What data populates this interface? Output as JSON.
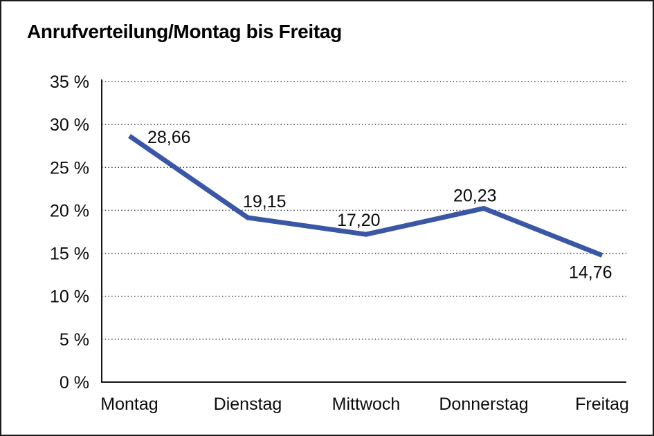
{
  "page": {
    "title": "Anrufverteilung/Montag bis Freitag"
  },
  "chart_data": {
    "type": "line",
    "title": "Anrufverteilung/Montag bis Freitag",
    "categories": [
      "Montag",
      "Dienstag",
      "Mittwoch",
      "Donnerstag",
      "Freitag"
    ],
    "series": [
      {
        "name": "Anrufverteilung",
        "values": [
          28.66,
          19.15,
          17.2,
          20.23,
          14.76
        ],
        "value_labels": [
          "28,66",
          "19,15",
          "17,20",
          "20,23",
          "14,76"
        ]
      }
    ],
    "unit": "%",
    "ylim": [
      0,
      35
    ],
    "y_ticks": [
      {
        "value": 35,
        "label": "35 %"
      },
      {
        "value": 30,
        "label": "30 %"
      },
      {
        "value": 25,
        "label": "25 %"
      },
      {
        "value": 20,
        "label": "20 %"
      },
      {
        "value": 15,
        "label": "15 %"
      },
      {
        "value": 10,
        "label": "10 %"
      },
      {
        "value": 5,
        "label": "5 %"
      },
      {
        "value": 0,
        "label": "0 %"
      }
    ],
    "grid": "horizontal-dotted",
    "legend": "none",
    "colors": {
      "line": "#3a57a5",
      "axis": "#141414",
      "text": "#0b0b0b",
      "grid": "#3f3f3f",
      "background": "#ffffff"
    }
  }
}
